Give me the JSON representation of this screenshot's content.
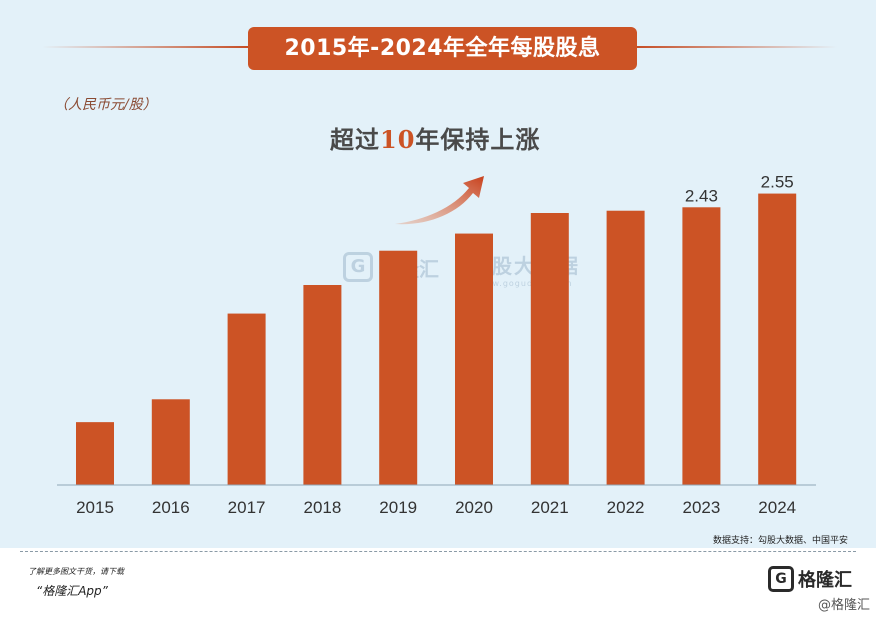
{
  "header": {
    "title": "2015年-2024年全年每股股息"
  },
  "unit_label": "（人民币元/股）",
  "highlight": {
    "prefix": "超过",
    "number": "10",
    "suffix": "年保持上涨"
  },
  "watermark": {
    "brand": "格隆汇",
    "name": "勾股大数据",
    "url": "www.gogudata.com"
  },
  "footer": {
    "source": "数据支持：勾股大数据、中国平安",
    "cta_line1": "了解更多图文干货，请下载",
    "cta_line2": "“格隆汇App”",
    "brand_mark": "G",
    "brand_name": "格隆汇",
    "brand_small": "@格隆汇"
  },
  "colors": {
    "bar": "#cc5325",
    "background": "#e3f1f9",
    "title_bg": "#cc5325"
  },
  "chart_data": {
    "type": "bar",
    "title": "2015年-2024年全年每股股息",
    "categories": [
      "2015",
      "2016",
      "2017",
      "2018",
      "2019",
      "2020",
      "2021",
      "2022",
      "2023",
      "2024"
    ],
    "values": [
      0.55,
      0.75,
      1.5,
      1.75,
      2.05,
      2.2,
      2.38,
      2.4,
      2.43,
      2.55
    ],
    "data_labels": {
      "2023": "2.43",
      "2024": "2.55"
    },
    "ylabel": "（人民币元/股）",
    "ylim": [
      0,
      2.8
    ],
    "grid": false
  }
}
